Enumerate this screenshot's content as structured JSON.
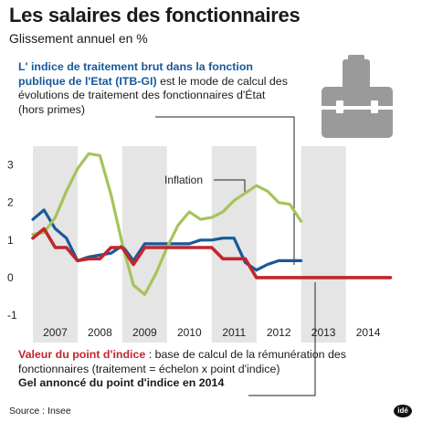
{
  "header": {
    "title": "Les salaires des fonctionnaires",
    "subtitle": "Glissement annuel en %"
  },
  "itb_note": {
    "strong": "L' indice de traitement brut dans la fonction publique de l'Etat (ITB-GI)",
    "rest": " est le mode de calcul des évolutions de traitement des fonctionnaires d'État (hors primes)"
  },
  "valeur_note": {
    "strong": "Valeur du point d'indice",
    "rest": " : base de calcul de la rémunération des fonctionnaires (traitement = échelon x point d'indice)",
    "gel": "Gel annoncé du point d'indice en 2014"
  },
  "source": "Source : Insee",
  "logo": "idé",
  "colors": {
    "itb": "#17599a",
    "point_indice": "#c0272d",
    "inflation": "#a5c45a",
    "band": "#e5e5e5",
    "icon": "#9a9a9a"
  },
  "icon": "briefcase-icon",
  "chart_data": {
    "type": "line",
    "title": "Les salaires des fonctionnaires",
    "subtitle": "Glissement annuel en %",
    "xlabel": "",
    "ylabel": "",
    "xlim": [
      2006.5,
      2015.0
    ],
    "ylim": [
      -1,
      3.5
    ],
    "yticks": [
      -1,
      0,
      1,
      2,
      3
    ],
    "ytick_labels": [
      "-1",
      "0",
      "1",
      "2",
      "3"
    ],
    "xticks": [
      2007,
      2008,
      2009,
      2010,
      2011,
      2012,
      2013,
      2014
    ],
    "xtick_labels": [
      "2007",
      "2008",
      "2009",
      "2010",
      "2011",
      "2012",
      "2013",
      "2014"
    ],
    "grid": false,
    "series": [
      {
        "name": "",
        "key": "itb",
        "x": [
          2006.5,
          2006.75,
          2007.0,
          2007.25,
          2007.5,
          2007.75,
          2008.0,
          2008.25,
          2008.5,
          2008.75,
          2009.0,
          2009.25,
          2009.5,
          2009.75,
          2010.0,
          2010.25,
          2010.5,
          2010.75,
          2011.0,
          2011.25,
          2011.5,
          2011.75,
          2012.0,
          2012.25,
          2012.5
        ],
        "values": [
          1.55,
          1.8,
          1.3,
          1.05,
          0.45,
          0.55,
          0.6,
          0.65,
          0.85,
          0.45,
          0.9,
          0.9,
          0.9,
          0.9,
          0.9,
          1.0,
          1.0,
          1.05,
          1.05,
          0.4,
          0.2,
          0.35,
          0.45,
          0.45,
          0.45
        ]
      },
      {
        "name": "",
        "key": "point_indice",
        "x": [
          2006.5,
          2006.75,
          2007.0,
          2007.25,
          2007.5,
          2007.75,
          2008.0,
          2008.25,
          2008.5,
          2008.75,
          2009.0,
          2009.25,
          2009.5,
          2009.75,
          2010.0,
          2010.25,
          2010.5,
          2010.75,
          2011.0,
          2011.25,
          2011.5,
          2011.75,
          2012.0,
          2012.5,
          2013.0,
          2013.5,
          2014.0,
          2014.5
        ],
        "values": [
          1.05,
          1.3,
          0.8,
          0.8,
          0.45,
          0.5,
          0.5,
          0.8,
          0.8,
          0.35,
          0.8,
          0.8,
          0.8,
          0.8,
          0.8,
          0.8,
          0.8,
          0.5,
          0.5,
          0.5,
          0.0,
          0.0,
          0.0,
          0.0,
          0.0,
          0.0,
          0.0,
          0.0
        ]
      },
      {
        "name": "Inflation",
        "key": "inflation",
        "x": [
          2006.5,
          2006.75,
          2007.0,
          2007.25,
          2007.5,
          2007.75,
          2008.0,
          2008.25,
          2008.5,
          2008.75,
          2009.0,
          2009.25,
          2009.5,
          2009.75,
          2010.0,
          2010.25,
          2010.5,
          2010.75,
          2011.0,
          2011.25,
          2011.5,
          2011.75,
          2012.0,
          2012.25,
          2012.5
        ],
        "values": [
          1.15,
          1.2,
          1.6,
          2.3,
          2.9,
          3.3,
          3.25,
          2.2,
          0.9,
          -0.2,
          -0.45,
          0.1,
          0.8,
          1.4,
          1.75,
          1.55,
          1.6,
          1.75,
          2.05,
          2.25,
          2.45,
          2.3,
          2.0,
          1.95,
          1.5
        ]
      }
    ],
    "annotations": [
      {
        "text": "Inflation",
        "x": 2010.15,
        "y": 2.65
      }
    ]
  }
}
